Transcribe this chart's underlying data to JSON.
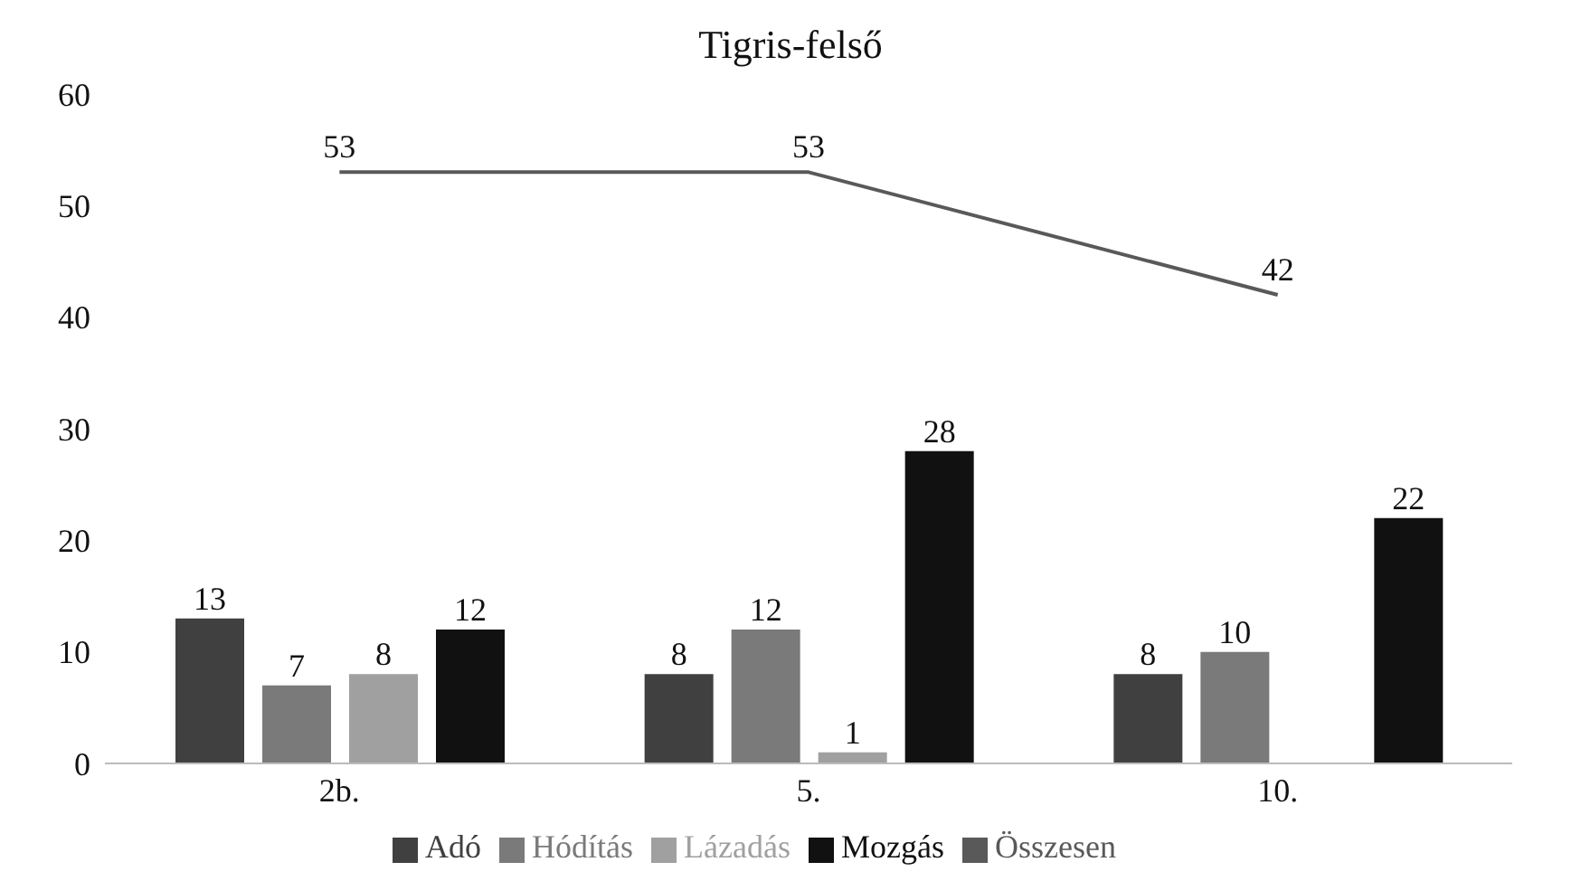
{
  "chart_data": {
    "type": "bar",
    "title": "Tigris-felső",
    "categories": [
      "2b.",
      "5.",
      "10."
    ],
    "series": [
      {
        "name": "Adó",
        "color": "#404040",
        "values": [
          13,
          8,
          8
        ]
      },
      {
        "name": "Hódítás",
        "color": "#7a7a7a",
        "values": [
          7,
          12,
          10
        ]
      },
      {
        "name": "Lázadás",
        "color": "#a0a0a0",
        "values": [
          8,
          1,
          null
        ]
      },
      {
        "name": "Mozgás",
        "color": "#111111",
        "values": [
          12,
          28,
          22
        ]
      },
      {
        "name": "Összesen",
        "type": "line",
        "color": "#595959",
        "values": [
          53,
          53,
          42
        ]
      }
    ],
    "ylim": [
      0,
      60
    ],
    "yticks": [
      0,
      10,
      20,
      30,
      40,
      50,
      60
    ],
    "grid": false,
    "legend": "bottom",
    "data_labels": true,
    "marker": "none"
  }
}
